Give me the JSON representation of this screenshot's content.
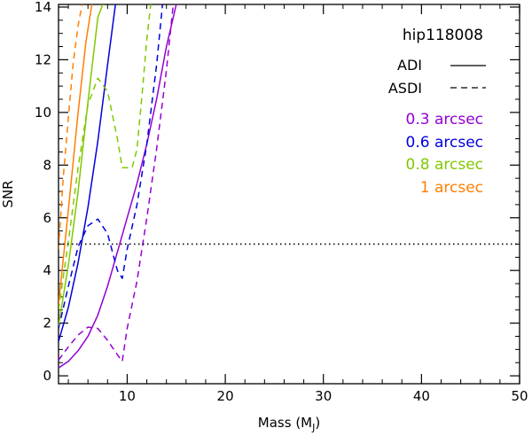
{
  "chart_data": {
    "type": "line",
    "title": "hip118008",
    "xlabel": "Mass (M",
    "xlabel_sub": "J",
    "xlabel_close": ")",
    "ylabel": "SNR",
    "xlim": [
      3,
      50
    ],
    "ylim": [
      -0.3,
      14.1
    ],
    "xticks": [
      10,
      20,
      30,
      40,
      50
    ],
    "yticks": [
      0,
      2,
      4,
      6,
      8,
      10,
      12,
      14
    ],
    "threshold": {
      "y": 5,
      "style": "dotted"
    },
    "line_styles": [
      {
        "label": "ADI",
        "style": "solid"
      },
      {
        "label": "ASDI",
        "style": "dashed"
      }
    ],
    "separations": [
      {
        "value": "0.3",
        "unit": "arcsec",
        "color": "#9400d3"
      },
      {
        "value": "0.6",
        "unit": "arcsec",
        "color": "#0000dd"
      },
      {
        "value": "0.8",
        "unit": "arcsec",
        "color": "#80c800"
      },
      {
        "value": "1",
        "unit": "arcsec",
        "color": "#ff7f00"
      }
    ],
    "series": [
      {
        "name": "0.3 arcsec ADI",
        "color": "#9400d3",
        "style": "solid",
        "x": [
          3,
          4,
          5,
          6,
          7,
          8,
          9,
          10,
          11,
          12,
          13,
          14,
          15
        ],
        "y": [
          0.3,
          0.55,
          0.95,
          1.5,
          2.3,
          3.4,
          4.7,
          6.0,
          7.3,
          8.8,
          10.5,
          12.5,
          14.1
        ]
      },
      {
        "name": "0.3 arcsec ASDI",
        "color": "#9400d3",
        "style": "dashed",
        "x": [
          3,
          4,
          5,
          6,
          7,
          8,
          9,
          9.5,
          10,
          11,
          12,
          13,
          14,
          14.7
        ],
        "y": [
          0.6,
          1.1,
          1.55,
          1.85,
          1.8,
          1.35,
          0.8,
          0.55,
          1.8,
          3.6,
          6.0,
          8.6,
          11.6,
          14.1
        ]
      },
      {
        "name": "0.6 arcsec ADI",
        "color": "#0000dd",
        "style": "solid",
        "x": [
          3,
          4,
          5,
          6,
          7,
          8,
          8.8
        ],
        "y": [
          1.3,
          2.6,
          4.3,
          6.4,
          8.9,
          11.8,
          14.1
        ]
      },
      {
        "name": "0.6 arcsec ASDI",
        "color": "#0000dd",
        "style": "dashed",
        "x": [
          3,
          4,
          5,
          6,
          7,
          8,
          9,
          9.5,
          10,
          11,
          12,
          13,
          13.6
        ],
        "y": [
          1.8,
          3.4,
          4.9,
          5.7,
          5.95,
          5.4,
          4.0,
          3.7,
          4.8,
          6.5,
          8.8,
          11.8,
          14.1
        ]
      },
      {
        "name": "0.8 arcsec ADI",
        "color": "#80c800",
        "style": "solid",
        "x": [
          3,
          4,
          5,
          6,
          7,
          7.5
        ],
        "y": [
          1.9,
          4.2,
          7.0,
          10.4,
          13.6,
          14.1
        ]
      },
      {
        "name": "0.8 arcsec ASDI",
        "color": "#80c800",
        "style": "dashed",
        "x": [
          3,
          4,
          5,
          6,
          7,
          8,
          9,
          9.5,
          10,
          10.5,
          11,
          11.6,
          12,
          12.4
        ],
        "y": [
          2.5,
          5.1,
          7.9,
          10.3,
          11.3,
          10.8,
          9.0,
          7.9,
          7.9,
          7.9,
          8.6,
          11.0,
          12.8,
          14.1
        ]
      },
      {
        "name": "1 arcsec ADI",
        "color": "#ff7f00",
        "style": "solid",
        "x": [
          3,
          4,
          5,
          5.8,
          6.4
        ],
        "y": [
          2.7,
          6.3,
          10.0,
          12.7,
          14.1
        ]
      },
      {
        "name": "1 arcsec ASDI",
        "color": "#ff7f00",
        "style": "dashed",
        "x": [
          3,
          3.5,
          4,
          4.5,
          5,
          5.4
        ],
        "y": [
          4.8,
          7.6,
          9.8,
          11.9,
          13.3,
          14.1
        ]
      }
    ]
  }
}
